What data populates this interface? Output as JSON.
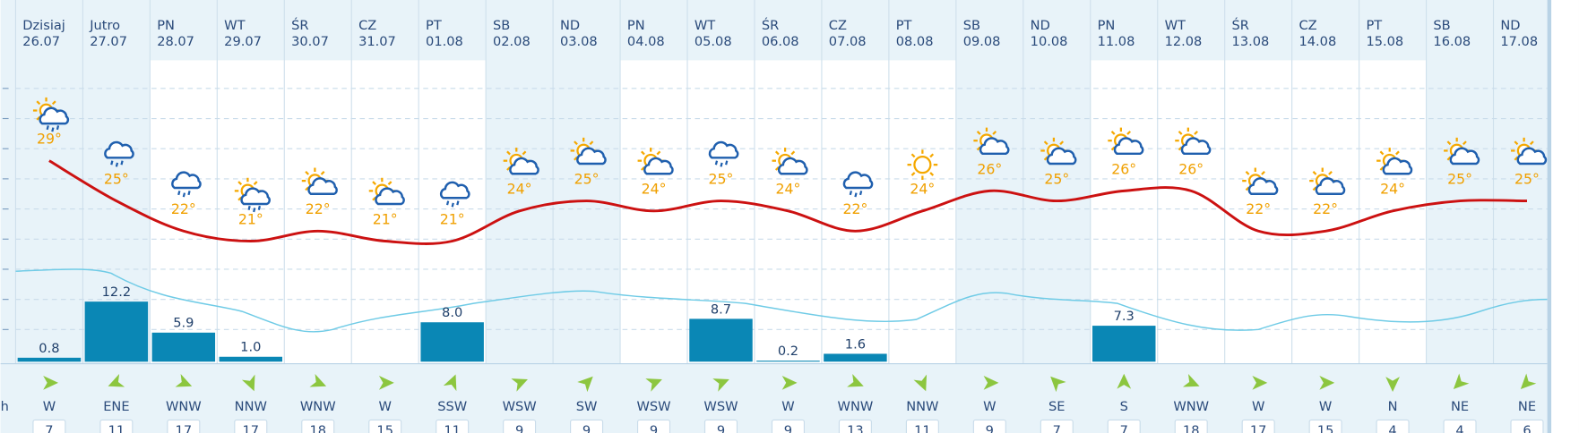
{
  "wind_unit_fragment": "h",
  "days": [
    {
      "day": "Dzisiaj",
      "date": "26.07",
      "temperature": 29,
      "temperature_label": "29°",
      "precipitation": 0.8,
      "precipitation_label": "0.8",
      "wind_direction": "W",
      "wind_speed": 7,
      "icon": "sun-cloud-rain"
    },
    {
      "day": "Jutro",
      "date": "27.07",
      "temperature": 25,
      "temperature_label": "25°",
      "precipitation": 12.2,
      "precipitation_label": "12.2",
      "wind_direction": "ENE",
      "wind_speed": 11,
      "icon": "cloud-rain"
    },
    {
      "day": "PN",
      "date": "28.07",
      "temperature": 22,
      "temperature_label": "22°",
      "precipitation": 5.9,
      "precipitation_label": "5.9",
      "wind_direction": "WNW",
      "wind_speed": 17,
      "icon": "cloud-rain"
    },
    {
      "day": "WT",
      "date": "29.07",
      "temperature": 21,
      "temperature_label": "21°",
      "precipitation": 1.0,
      "precipitation_label": "1.0",
      "wind_direction": "NNW",
      "wind_speed": 17,
      "icon": "sun-cloud-rain"
    },
    {
      "day": "ŚR",
      "date": "30.07",
      "temperature": 22,
      "temperature_label": "22°",
      "wind_direction": "WNW",
      "wind_speed": 18,
      "icon": "sun-cloud"
    },
    {
      "day": "CZ",
      "date": "31.07",
      "temperature": 21,
      "temperature_label": "21°",
      "wind_direction": "W",
      "wind_speed": 15,
      "icon": "sun-cloud"
    },
    {
      "day": "PT",
      "date": "01.08",
      "temperature": 21,
      "temperature_label": "21°",
      "precipitation": 8.0,
      "precipitation_label": "8.0",
      "wind_direction": "SSW",
      "wind_speed": 11,
      "icon": "cloud-rain"
    },
    {
      "day": "SB",
      "date": "02.08",
      "temperature": 24,
      "temperature_label": "24°",
      "wind_direction": "WSW",
      "wind_speed": 9,
      "icon": "sun-cloud"
    },
    {
      "day": "ND",
      "date": "03.08",
      "temperature": 25,
      "temperature_label": "25°",
      "wind_direction": "SW",
      "wind_speed": 9,
      "icon": "sun-cloud"
    },
    {
      "day": "PN",
      "date": "04.08",
      "temperature": 24,
      "temperature_label": "24°",
      "wind_direction": "WSW",
      "wind_speed": 9,
      "icon": "sun-cloud"
    },
    {
      "day": "WT",
      "date": "05.08",
      "temperature": 25,
      "temperature_label": "25°",
      "precipitation": 8.7,
      "precipitation_label": "8.7",
      "wind_direction": "WSW",
      "wind_speed": 9,
      "icon": "cloud-rain"
    },
    {
      "day": "ŚR",
      "date": "06.08",
      "temperature": 24,
      "temperature_label": "24°",
      "precipitation": 0.2,
      "precipitation_label": "0.2",
      "wind_direction": "W",
      "wind_speed": 9,
      "icon": "sun-cloud"
    },
    {
      "day": "CZ",
      "date": "07.08",
      "temperature": 22,
      "temperature_label": "22°",
      "precipitation": 1.6,
      "precipitation_label": "1.6",
      "wind_direction": "WNW",
      "wind_speed": 13,
      "icon": "cloud-rain"
    },
    {
      "day": "PT",
      "date": "08.08",
      "temperature": 24,
      "temperature_label": "24°",
      "wind_direction": "NNW",
      "wind_speed": 11,
      "icon": "sun"
    },
    {
      "day": "SB",
      "date": "09.08",
      "temperature": 26,
      "temperature_label": "26°",
      "wind_direction": "W",
      "wind_speed": 9,
      "icon": "sun-cloud"
    },
    {
      "day": "ND",
      "date": "10.08",
      "temperature": 25,
      "temperature_label": "25°",
      "wind_direction": "SE",
      "wind_speed": 7,
      "icon": "sun-cloud"
    },
    {
      "day": "PN",
      "date": "11.08",
      "temperature": 26,
      "temperature_label": "26°",
      "precipitation": 7.3,
      "precipitation_label": "7.3",
      "wind_direction": "S",
      "wind_speed": 7,
      "icon": "sun-cloud"
    },
    {
      "day": "WT",
      "date": "12.08",
      "temperature": 26,
      "temperature_label": "26°",
      "wind_direction": "WNW",
      "wind_speed": 18,
      "icon": "sun-cloud"
    },
    {
      "day": "ŚR",
      "date": "13.08",
      "temperature": 22,
      "temperature_label": "22°",
      "wind_direction": "W",
      "wind_speed": 17,
      "icon": "sun-cloud"
    },
    {
      "day": "CZ",
      "date": "14.08",
      "temperature": 22,
      "temperature_label": "22°",
      "wind_direction": "W",
      "wind_speed": 15,
      "icon": "sun-cloud"
    },
    {
      "day": "PT",
      "date": "15.08",
      "temperature": 24,
      "temperature_label": "24°",
      "wind_direction": "N",
      "wind_speed": 4,
      "icon": "sun-cloud"
    },
    {
      "day": "SB",
      "date": "16.08",
      "temperature": 25,
      "temperature_label": "25°",
      "wind_direction": "NE",
      "wind_speed": 4,
      "icon": "sun-cloud"
    },
    {
      "day": "ND",
      "date": "17.08",
      "temperature": 25,
      "temperature_label": "25°",
      "wind_direction": "NE",
      "wind_speed": 6,
      "icon": "sun-cloud"
    }
  ]
}
